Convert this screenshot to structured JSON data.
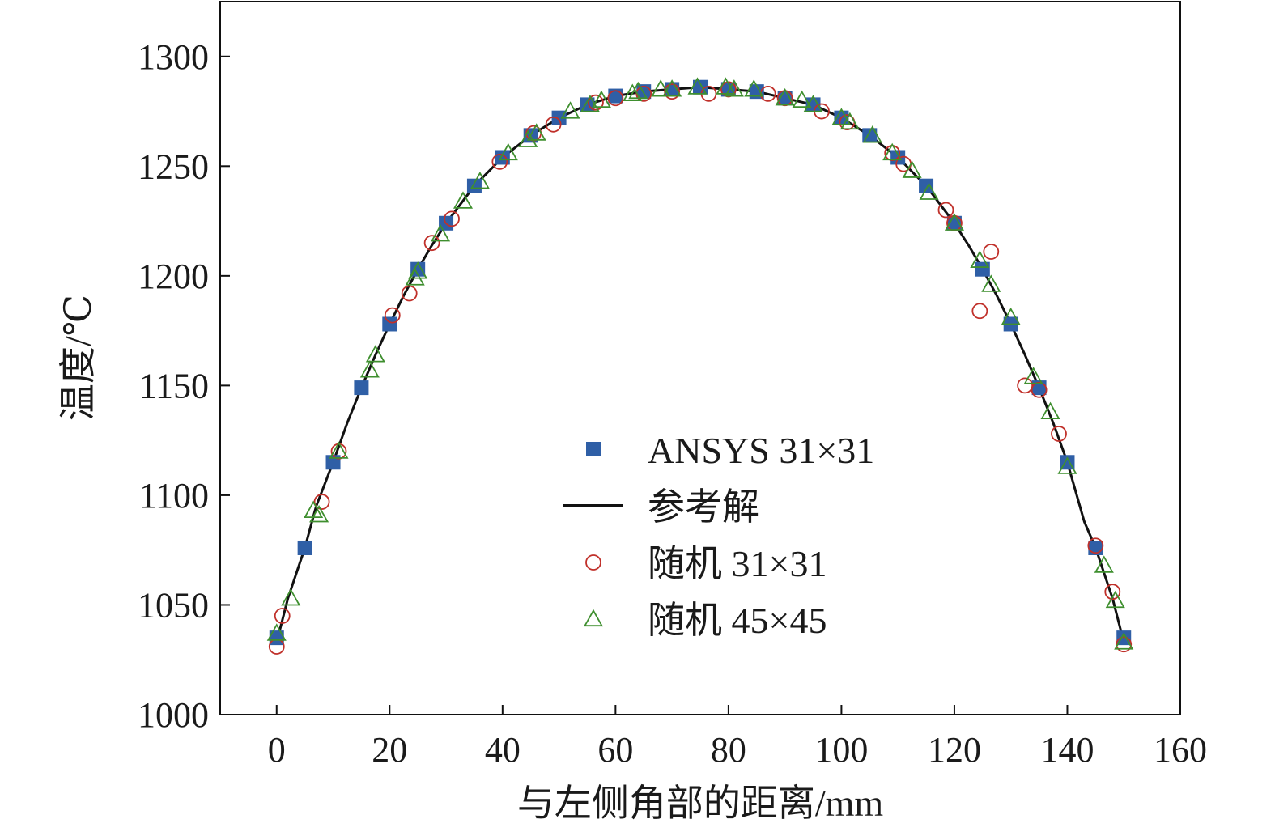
{
  "chart_data": {
    "type": "scatter",
    "xlabel": "与左侧角部的距离/mm",
    "ylabel": "温度/℃",
    "xlim": [
      -10,
      160
    ],
    "ylim": [
      1000,
      1325
    ],
    "xticks": [
      0,
      20,
      40,
      60,
      80,
      100,
      120,
      140,
      160
    ],
    "yticks": [
      1000,
      1050,
      1100,
      1150,
      1200,
      1250,
      1300
    ],
    "grid": false,
    "legend_position": "center-right",
    "series": [
      {
        "name": "ANSYS 31×31",
        "kind": "marker",
        "marker": "square",
        "color": "#2f5fa6",
        "x": [
          0,
          5,
          10,
          15,
          20,
          25,
          30,
          35,
          40,
          45,
          50,
          55,
          60,
          65,
          70,
          75,
          80,
          85,
          90,
          95,
          100,
          105,
          110,
          115,
          120,
          125,
          130,
          135,
          140,
          145,
          150
        ],
        "y": [
          1035,
          1076,
          1115,
          1149,
          1178,
          1203,
          1224,
          1241,
          1254,
          1264,
          1272,
          1278,
          1282,
          1284,
          1285,
          1286,
          1285,
          1284,
          1281,
          1278,
          1272,
          1264,
          1254,
          1241,
          1224,
          1203,
          1178,
          1149,
          1115,
          1076,
          1035
        ]
      },
      {
        "name": "参考解",
        "kind": "line",
        "color": "#111111",
        "x": [
          0,
          2,
          5,
          7,
          10,
          12.5,
          15,
          17.5,
          20,
          22.5,
          25,
          27.5,
          30,
          35,
          40,
          45,
          50,
          55,
          60,
          65,
          70,
          75,
          80,
          85,
          90,
          95,
          100,
          105,
          110,
          115,
          120,
          122.5,
          125,
          127.5,
          130,
          132.5,
          135,
          137.5,
          140,
          143,
          145,
          148,
          150
        ],
        "y": [
          1033,
          1053,
          1076,
          1095,
          1115,
          1133,
          1149,
          1164,
          1178,
          1191,
          1203,
          1214,
          1224,
          1241,
          1254,
          1264,
          1272,
          1278,
          1282,
          1284,
          1285,
          1286,
          1285,
          1284,
          1281,
          1278,
          1272,
          1264,
          1254,
          1241,
          1224,
          1214,
          1203,
          1191,
          1178,
          1164,
          1149,
          1133,
          1115,
          1088,
          1076,
          1053,
          1033
        ]
      },
      {
        "name": "随机 31×31",
        "kind": "marker",
        "marker": "circle",
        "color": "#c0302a",
        "x": [
          0,
          1,
          8,
          11,
          20.5,
          23.5,
          27.5,
          31,
          39.5,
          45.5,
          49,
          56.5,
          60,
          65,
          70,
          76.5,
          80,
          87,
          90,
          96.5,
          101,
          109,
          111,
          118.5,
          120,
          124.5,
          126.5,
          132.5,
          135,
          138.5,
          145,
          148,
          150
        ],
        "y": [
          1031,
          1045,
          1097,
          1120,
          1182,
          1192,
          1215,
          1226,
          1252,
          1265,
          1269,
          1279,
          1281,
          1283,
          1284,
          1283,
          1285,
          1283,
          1281,
          1275,
          1270,
          1256,
          1251,
          1230,
          1224,
          1184,
          1211,
          1150,
          1148,
          1128,
          1077,
          1056,
          1032
        ]
      },
      {
        "name": "随机 45×45",
        "kind": "marker",
        "marker": "triangle",
        "color": "#3f8f2f",
        "x": [
          0,
          2.5,
          6.5,
          7.5,
          11,
          16.5,
          17.5,
          24.5,
          25,
          29,
          33,
          36,
          41,
          44.5,
          46,
          52,
          55.5,
          57.5,
          63,
          64,
          68,
          70,
          74.5,
          79.5,
          81,
          84.5,
          90,
          93,
          95,
          100,
          101.5,
          105.5,
          109,
          112.5,
          115.5,
          120,
          124.5,
          126.5,
          130,
          134,
          137,
          140,
          146.5,
          148.5,
          150
        ],
        "y": [
          1037,
          1053,
          1093,
          1091,
          1120,
          1157,
          1164,
          1199,
          1202,
          1219,
          1234,
          1243,
          1256,
          1262,
          1265,
          1275,
          1278,
          1280,
          1283,
          1284,
          1285,
          1285,
          1286,
          1286,
          1285,
          1285,
          1281,
          1280,
          1278,
          1272,
          1270,
          1264,
          1256,
          1248,
          1238,
          1224,
          1207,
          1196,
          1181,
          1154,
          1138,
          1113,
          1068,
          1052,
          1033
        ]
      }
    ]
  }
}
